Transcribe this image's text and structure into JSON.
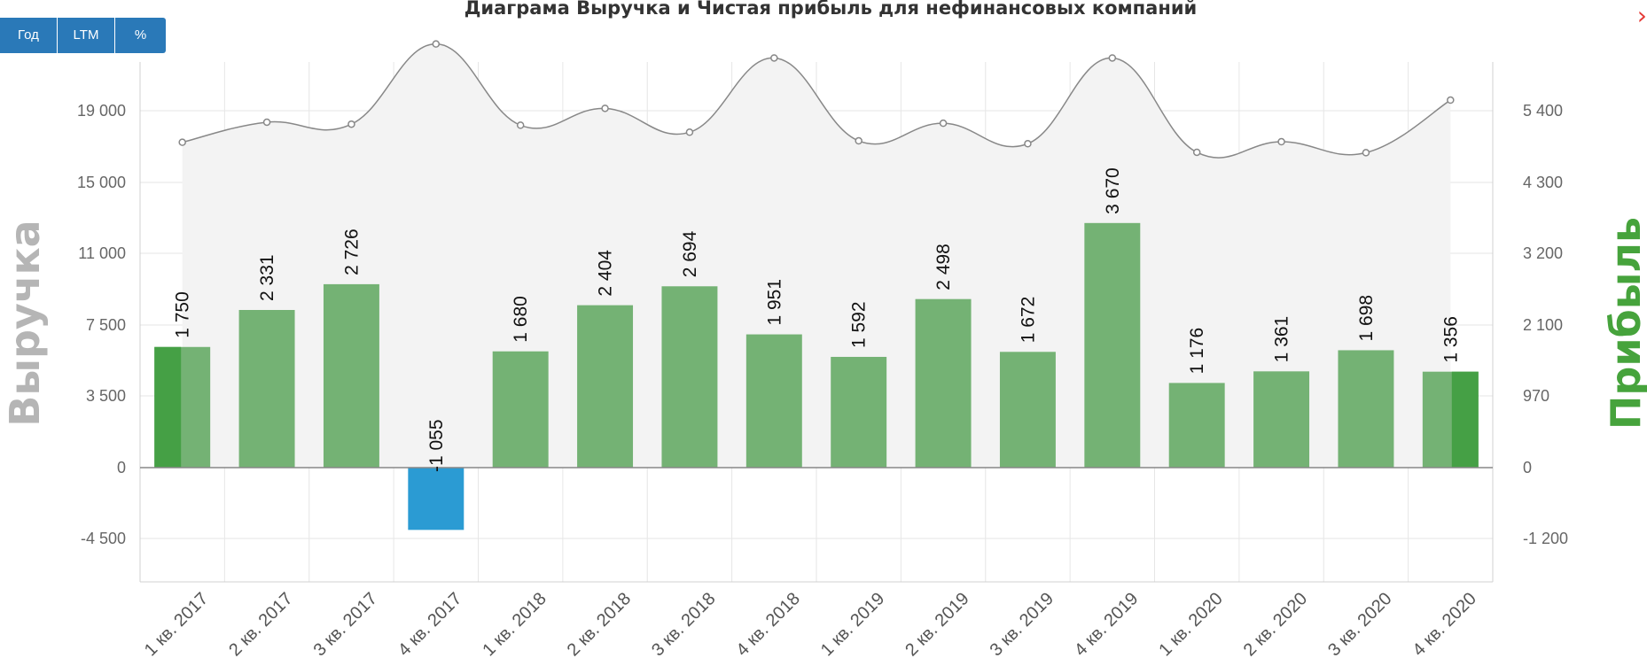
{
  "buttons": [
    {
      "label": "Год"
    },
    {
      "label": "LTM"
    },
    {
      "label": "%"
    }
  ],
  "close_icon": "›",
  "chart_data": {
    "type": "bar+area",
    "title": "Диаграма Выручка и Чистая прибыль для нефинансовых компаний",
    "categories": [
      "1 кв. 2017",
      "2 кв. 2017",
      "3 кв. 2017",
      "4 кв. 2017",
      "1 кв. 2018",
      "2 кв. 2018",
      "3 кв. 2018",
      "4 кв. 2018",
      "1 кв. 2019",
      "2 кв. 2019",
      "3 кв. 2019",
      "4 кв. 2019",
      "1 кв. 2020",
      "2 кв. 2020",
      "3 кв. 2020",
      "4 кв. 2020"
    ],
    "left_axis": {
      "label": "Выручка",
      "ticks": [
        -4500,
        0,
        3500,
        7500,
        11000,
        15000,
        19000
      ],
      "tick_labels": [
        "-4 500",
        "0",
        "3 500",
        "7 500",
        "11 000",
        "15 000",
        "19 000"
      ],
      "color": "#b5b5b5"
    },
    "right_axis": {
      "label": "Прибыль",
      "ticks": [
        -1200,
        0,
        970,
        2100,
        3200,
        4300,
        5400
      ],
      "tick_labels": [
        "-1 200",
        "0",
        "970",
        "2 100",
        "3 200",
        "4 300",
        "5 400"
      ],
      "color": "#46a33c"
    },
    "series": [
      {
        "type": "area",
        "axis": "left",
        "values": [
          17240,
          18360,
          18250,
          22720,
          18190,
          19130,
          17800,
          21940,
          17320,
          18300,
          17160,
          21940,
          16680,
          17270,
          16660,
          19590
        ],
        "line_color": "#888888",
        "fill_color": "#f3f3f3"
      },
      {
        "type": "bar",
        "axis": "right",
        "values": [
          1750,
          2331,
          2726,
          -1055,
          1680,
          2404,
          2694,
          1951,
          1592,
          2498,
          1672,
          3670,
          1176,
          1361,
          1698,
          1356
        ],
        "labels": [
          "1 750",
          "2 331",
          "2 726",
          "-1 055",
          "1 680",
          "2 404",
          "2 694",
          "1 951",
          "1 592",
          "2 498",
          "1 672",
          "3 670",
          "1 176",
          "1 361",
          "1 698",
          "1 356"
        ],
        "color": "#74b274",
        "negative_color": "#2b9bd3"
      }
    ],
    "grid": true
  }
}
